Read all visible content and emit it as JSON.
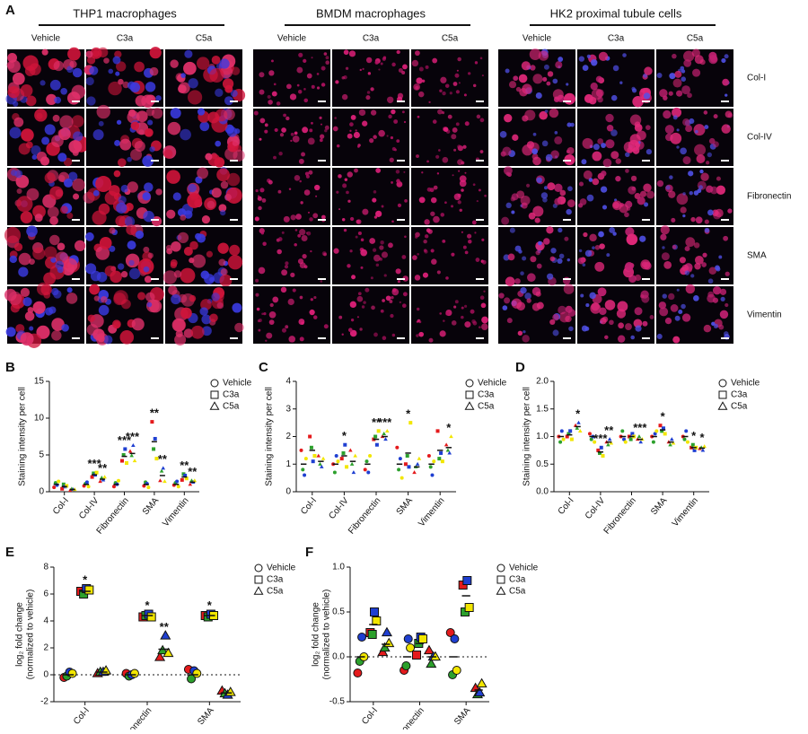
{
  "panel_a": {
    "label": "A",
    "groups": [
      {
        "title": "THP1 macrophages",
        "columns": [
          "Vehicle",
          "C3a",
          "C5a"
        ]
      },
      {
        "title": "BMDM macrophages",
        "columns": [
          "Vehicle",
          "C3a",
          "C5a"
        ]
      },
      {
        "title": "HK2 proximal tubule cells",
        "columns": [
          "Vehicle",
          "C3a",
          "C5a"
        ]
      }
    ],
    "rows": [
      "Col-I",
      "Col-IV",
      "Fibronectin",
      "SMA",
      "Vimentin"
    ]
  },
  "chart_data": [
    {
      "type": "strip",
      "panel": "B",
      "ylabel": "Staining intensity per cell",
      "categories": [
        "Col-I",
        "Col-IV",
        "Fibronectin",
        "SMA",
        "Vimentin"
      ],
      "ylim": [
        0,
        15
      ],
      "yticks": [
        0,
        5,
        10,
        15
      ],
      "point_colors": [
        "#e41a1c",
        "#2ca02c",
        "#1f3fd1",
        "#f2e600"
      ],
      "point_outline": false,
      "zero_line": false,
      "series": [
        {
          "name": "Vehicle",
          "marker": "circle",
          "values": [
            1,
            1,
            1,
            1,
            1
          ],
          "significance": [
            null,
            null,
            null,
            null,
            null
          ],
          "points": [
            [
              0.6,
              1.2,
              0.9,
              1.4
            ],
            [
              0.8,
              1.1,
              1.3,
              0.7
            ],
            [
              0.7,
              1.2,
              1.0,
              1.5
            ],
            [
              0.8,
              1.3,
              1.1,
              0.6
            ],
            [
              0.9,
              1.2,
              1.4,
              0.7
            ]
          ]
        },
        {
          "name": "C3a",
          "marker": "square",
          "values": [
            0.7,
            2.3,
            4.8,
            6.8,
            2.0
          ],
          "significance": [
            null,
            "***",
            "***",
            "**",
            "**"
          ],
          "points": [
            [
              0.4,
              1.0,
              0.7,
              0.8
            ],
            [
              2.0,
              2.5,
              2.3,
              2.6
            ],
            [
              4.2,
              5.0,
              5.8,
              3.9
            ],
            [
              9.5,
              5.8,
              7.2,
              4.5
            ],
            [
              1.6,
              2.4,
              2.2,
              1.8
            ]
          ]
        },
        {
          "name": "C5a",
          "marker": "triangle",
          "values": [
            0.3,
            1.7,
            5.2,
            2.2,
            1.3
          ],
          "significance": [
            null,
            "**",
            "***",
            "**",
            "**"
          ],
          "points": [
            [
              0.2,
              0.4,
              0.3,
              0.3
            ],
            [
              1.4,
              1.9,
              1.6,
              2.0
            ],
            [
              5.5,
              4.9,
              6.3,
              4.2
            ],
            [
              1.5,
              2.8,
              3.2,
              1.4
            ],
            [
              1.0,
              1.5,
              1.3,
              1.5
            ]
          ]
        }
      ]
    },
    {
      "type": "strip",
      "panel": "C",
      "ylabel": "Staining intensity per cell",
      "categories": [
        "Col-I",
        "Col-IV",
        "Fibronectin",
        "SMA",
        "Vimentin"
      ],
      "ylim": [
        0,
        4
      ],
      "yticks": [
        0,
        1,
        2,
        3,
        4
      ],
      "point_colors": [
        "#e41a1c",
        "#2ca02c",
        "#1f3fd1",
        "#f2e600"
      ],
      "point_outline": false,
      "zero_line": false,
      "series": [
        {
          "name": "Vehicle",
          "marker": "circle",
          "values": [
            1,
            1,
            1,
            1,
            1
          ],
          "significance": [
            null,
            null,
            null,
            null,
            null
          ],
          "points": [
            [
              1.5,
              0.8,
              0.6,
              1.2
            ],
            [
              1.0,
              0.7,
              1.3,
              1.1
            ],
            [
              0.8,
              1.1,
              0.7,
              1.3
            ],
            [
              1.6,
              0.8,
              1.2,
              0.5
            ],
            [
              1.3,
              0.9,
              0.6,
              1.1
            ]
          ]
        },
        {
          "name": "C3a",
          "marker": "square",
          "values": [
            1.5,
            1.3,
            1.9,
            1.4,
            1.5
          ],
          "significance": [
            null,
            "*",
            "**",
            "*",
            null
          ],
          "points": [
            [
              2.0,
              1.6,
              1.1,
              1.3
            ],
            [
              1.2,
              1.4,
              1.7,
              0.9
            ],
            [
              1.9,
              2.0,
              1.7,
              2.2
            ],
            [
              1.0,
              1.3,
              0.9,
              2.5
            ],
            [
              2.2,
              1.2,
              1.4,
              1.1
            ]
          ]
        },
        {
          "name": "C5a",
          "marker": "triangle",
          "values": [
            1.1,
            1.1,
            2.0,
            0.9,
            1.6
          ],
          "significance": [
            null,
            null,
            "***",
            null,
            "*"
          ],
          "points": [
            [
              1.3,
              1.0,
              0.9,
              1.2
            ],
            [
              1.5,
              1.0,
              0.7,
              1.3
            ],
            [
              2.0,
              2.1,
              1.9,
              2.2
            ],
            [
              0.7,
              0.9,
              1.0,
              1.2
            ],
            [
              1.7,
              1.5,
              1.4,
              2.0
            ]
          ]
        }
      ]
    },
    {
      "type": "strip",
      "panel": "D",
      "ylabel": "Staining intensity per cell",
      "categories": [
        "Col-I",
        "Col-IV",
        "Fibronectin",
        "SMA",
        "Vimentin"
      ],
      "ylim": [
        0,
        2
      ],
      "yticks": [
        {
          "value": 0,
          "label": "0.0"
        },
        0.5,
        {
          "value": 1,
          "label": "1.0"
        },
        1.5,
        {
          "value": 2,
          "label": "2.0"
        }
      ],
      "point_colors": [
        "#e41a1c",
        "#2ca02c",
        "#1f3fd1",
        "#f2e600"
      ],
      "point_outline": false,
      "zero_line": false,
      "series": [
        {
          "name": "Vehicle",
          "marker": "circle",
          "values": [
            1,
            1,
            1,
            1,
            1
          ],
          "significance": [
            null,
            null,
            null,
            null,
            null
          ],
          "points": [
            [
              1.0,
              0.9,
              1.1,
              0.95
            ],
            [
              1.05,
              0.95,
              1.0,
              0.9
            ],
            [
              1.0,
              1.1,
              0.95,
              0.9
            ],
            [
              1.0,
              0.9,
              1.05,
              1.1
            ],
            [
              1.0,
              0.95,
              1.1,
              0.9
            ]
          ]
        },
        {
          "name": "C3a",
          "marker": "square",
          "values": [
            1.03,
            0.72,
            1.0,
            1.12,
            0.8
          ],
          "significance": [
            null,
            "***",
            null,
            "*",
            "*"
          ],
          "points": [
            [
              1.0,
              1.05,
              1.1,
              0.95
            ],
            [
              0.75,
              0.7,
              0.8,
              0.65
            ],
            [
              1.0,
              0.95,
              1.05,
              1.0
            ],
            [
              1.2,
              1.1,
              1.15,
              1.05
            ],
            [
              0.8,
              0.85,
              0.75,
              0.8
            ]
          ]
        },
        {
          "name": "C5a",
          "marker": "triangle",
          "values": [
            1.18,
            0.9,
            0.95,
            0.9,
            0.79
          ],
          "significance": [
            "*",
            "**",
            "***",
            null,
            "*"
          ],
          "points": [
            [
              1.2,
              1.15,
              1.25,
              1.1
            ],
            [
              0.9,
              0.85,
              0.95,
              0.88
            ],
            [
              0.95,
              1.0,
              0.9,
              0.95
            ],
            [
              0.9,
              0.85,
              0.95,
              0.88
            ],
            [
              0.78,
              0.8,
              0.75,
              0.82
            ]
          ]
        }
      ]
    },
    {
      "type": "strip",
      "panel": "E",
      "ylabel": [
        "log₂ fold change",
        "(normalized to vehicle)"
      ],
      "categories": [
        "Col-I",
        "Fibronectin",
        "SMA"
      ],
      "ylim": [
        -2,
        8
      ],
      "yticks": [
        -2,
        0,
        2,
        4,
        6,
        8
      ],
      "point_colors": [
        "#e41a1c",
        "#2ca02c",
        "#1f3fd1",
        "#f2e600"
      ],
      "point_outline": true,
      "zero_line": true,
      "series": [
        {
          "name": "Vehicle",
          "marker": "circle",
          "values": [
            0,
            0,
            0
          ],
          "significance": [
            null,
            null,
            null
          ],
          "points": [
            [
              -0.2,
              -0.1,
              0.2,
              0.1
            ],
            [
              0.1,
              -0.1,
              0.0,
              0.1
            ],
            [
              0.4,
              -0.3,
              0.3,
              0.1
            ]
          ]
        },
        {
          "name": "C3a",
          "marker": "square",
          "values": [
            6.2,
            4.4,
            4.4
          ],
          "significance": [
            "*",
            "*",
            "*"
          ],
          "points": [
            [
              6.2,
              6.0,
              6.4,
              6.3
            ],
            [
              4.3,
              4.4,
              4.5,
              4.3
            ],
            [
              4.4,
              4.3,
              4.5,
              4.4
            ]
          ]
        },
        {
          "name": "C5a",
          "marker": "triangle",
          "values": [
            0.2,
            1.9,
            -1.35
          ],
          "significance": [
            null,
            "**",
            null
          ],
          "points": [
            [
              0.1,
              0.2,
              0.2,
              0.3
            ],
            [
              1.3,
              1.8,
              2.9,
              1.6
            ],
            [
              -1.2,
              -1.4,
              -1.5,
              -1.3
            ]
          ]
        }
      ]
    },
    {
      "type": "strip",
      "panel": "F",
      "ylabel": [
        "log₂ fold change",
        "(normalized to vehicle)"
      ],
      "categories": [
        "Col-I",
        "Fibronectin",
        "SMA"
      ],
      "ylim": [
        -0.5,
        1
      ],
      "yticks": [
        -0.5,
        {
          "value": 0,
          "label": "0.0"
        },
        0.5,
        {
          "value": 1,
          "label": "1.0"
        }
      ],
      "point_colors": [
        "#e41a1c",
        "#2ca02c",
        "#1f3fd1",
        "#f2e600"
      ],
      "point_outline": true,
      "zero_line": true,
      "series": [
        {
          "name": "Vehicle",
          "marker": "circle",
          "values": [
            0,
            0,
            0
          ],
          "significance": [
            null,
            null,
            null
          ],
          "points": [
            [
              -0.18,
              -0.05,
              0.22,
              0.0
            ],
            [
              -0.15,
              -0.1,
              0.2,
              0.1
            ],
            [
              0.27,
              -0.2,
              0.2,
              -0.15
            ]
          ]
        },
        {
          "name": "C3a",
          "marker": "square",
          "values": [
            0.36,
            0.15,
            0.68
          ],
          "significance": [
            null,
            null,
            null
          ],
          "points": [
            [
              0.27,
              0.25,
              0.5,
              0.4
            ],
            [
              0.02,
              0.15,
              0.22,
              0.2
            ],
            [
              0.8,
              0.5,
              0.85,
              0.55
            ]
          ]
        },
        {
          "name": "C5a",
          "marker": "triangle",
          "values": [
            0.14,
            0.0,
            -0.37
          ],
          "significance": [
            null,
            null,
            null
          ],
          "points": [
            [
              0.05,
              0.1,
              0.27,
              0.15
            ],
            [
              0.07,
              -0.08,
              0.0,
              0.0
            ],
            [
              -0.35,
              -0.42,
              -0.4,
              -0.3
            ]
          ]
        }
      ]
    }
  ]
}
